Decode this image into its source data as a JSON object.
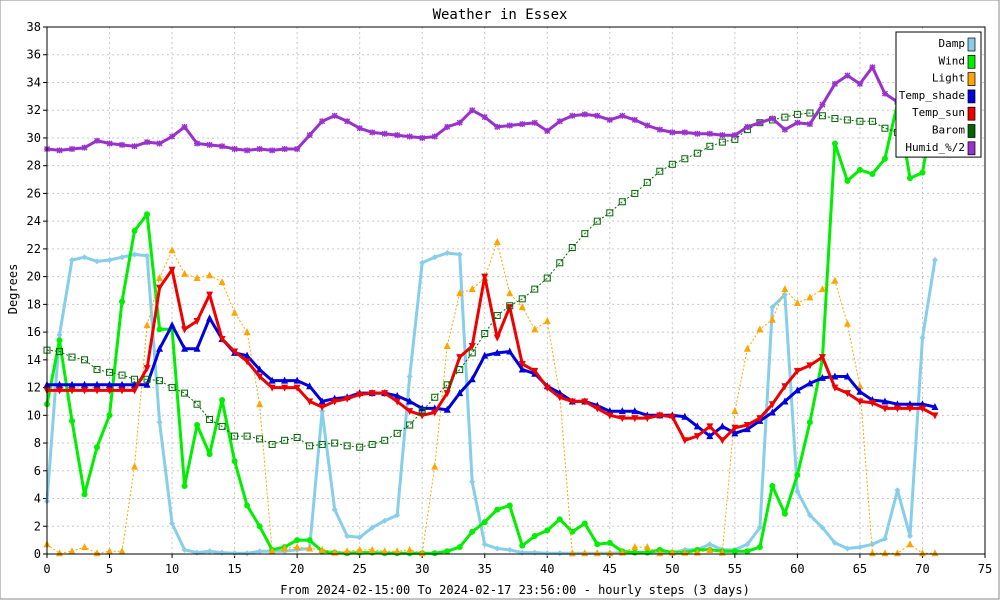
{
  "chart_data": {
    "type": "line",
    "title": "Weather in Essex",
    "xlabel": "From 2024-02-15:00 To 2024-02-17 23:56:00 - hourly steps (3 days)",
    "ylabel": "Degrees",
    "xlim": [
      0,
      75
    ],
    "ylim": [
      0,
      38
    ],
    "xticks": [
      0,
      5,
      10,
      15,
      20,
      25,
      30,
      35,
      40,
      45,
      50,
      55,
      60,
      65,
      70,
      75
    ],
    "yticks": [
      0,
      2,
      4,
      6,
      8,
      10,
      12,
      14,
      16,
      18,
      20,
      22,
      24,
      26,
      28,
      30,
      32,
      34,
      36,
      38
    ],
    "grid": true,
    "legend_position": "top-right",
    "x": [
      0,
      1,
      2,
      3,
      4,
      5,
      6,
      7,
      8,
      9,
      10,
      11,
      12,
      13,
      14,
      15,
      16,
      17,
      18,
      19,
      20,
      21,
      22,
      23,
      24,
      25,
      26,
      27,
      28,
      29,
      30,
      31,
      32,
      33,
      34,
      35,
      36,
      37,
      38,
      39,
      40,
      41,
      42,
      43,
      44,
      45,
      46,
      47,
      48,
      49,
      50,
      51,
      52,
      53,
      54,
      55,
      56,
      57,
      58,
      59,
      60,
      61,
      62,
      63,
      64,
      65,
      66,
      67,
      68,
      69,
      70,
      71
    ],
    "series": [
      {
        "name": "Damp",
        "color": "#87ceeb",
        "marker": "diamond",
        "style": "solid",
        "width": 3,
        "values": [
          3.8,
          15.8,
          21.2,
          21.4,
          21.1,
          21.2,
          21.4,
          21.6,
          21.5,
          9.5,
          2.2,
          0.3,
          0.1,
          0.2,
          0.1,
          0.05,
          0.05,
          0.2,
          0.2,
          0.2,
          0.3,
          0.4,
          10.3,
          3.2,
          1.3,
          1.2,
          1.9,
          2.4,
          2.8,
          12.8,
          21.0,
          21.4,
          21.7,
          21.6,
          5.2,
          0.7,
          0.4,
          0.3,
          0.1,
          0.1,
          0.05,
          0.05,
          0.05,
          0.05,
          0.05,
          0.05,
          0.1,
          0.1,
          0.1,
          0.1,
          0.1,
          0.3,
          0.3,
          0.7,
          0.3,
          0.3,
          0.7,
          1.9,
          17.8,
          18.7,
          4.5,
          2.8,
          1.9,
          0.8,
          0.4,
          0.5,
          0.7,
          1.1,
          4.6,
          1.3,
          15.6,
          21.2
        ]
      },
      {
        "name": "Wind",
        "color": "#00ee00",
        "marker": "circle",
        "style": "solid",
        "width": 3,
        "values": [
          10.8,
          15.4,
          9.6,
          4.3,
          7.7,
          10.0,
          18.2,
          23.3,
          24.5,
          16.2,
          16.2,
          4.9,
          9.3,
          7.2,
          11.1,
          6.7,
          3.5,
          2.0,
          0.3,
          0.5,
          1.0,
          1.0,
          0.2,
          0.1,
          0.05,
          0.1,
          0.1,
          0.05,
          0.05,
          0.05,
          0.05,
          0.05,
          0.2,
          0.5,
          1.6,
          2.3,
          3.2,
          3.5,
          0.6,
          1.3,
          1.7,
          2.5,
          1.6,
          2.2,
          0.7,
          0.8,
          0.2,
          0.1,
          0.1,
          0.3,
          0.1,
          0.1,
          0.3,
          0.3,
          0.2,
          0.2,
          0.2,
          0.5,
          4.9,
          2.9,
          5.7,
          9.5,
          14.0,
          29.6,
          26.9,
          27.7,
          27.4,
          28.5,
          32.5,
          27.1,
          27.5,
          32.7
        ]
      },
      {
        "name": "Light",
        "color": "#ffa500",
        "marker": "triangle-up",
        "style": "dotted",
        "width": 1,
        "values": [
          0.7,
          0.05,
          0.2,
          0.5,
          0.05,
          0.2,
          0.2,
          6.3,
          16.5,
          19.9,
          21.9,
          20.2,
          19.9,
          20.1,
          19.6,
          17.4,
          16.0,
          10.8,
          0.2,
          0.4,
          0.5,
          0.4,
          0.3,
          0.1,
          0.2,
          0.3,
          0.3,
          0.2,
          0.2,
          0.3,
          0.05,
          6.3,
          15.0,
          18.8,
          19.1,
          19.9,
          22.5,
          18.8,
          17.8,
          16.2,
          16.8,
          11.5,
          0.05,
          0.05,
          0.05,
          0.05,
          0.1,
          0.5,
          0.5,
          0.05,
          0.1,
          0.1,
          0.1,
          0.3,
          0.1,
          10.3,
          14.8,
          16.2,
          16.9,
          19.1,
          18.1,
          18.5,
          19.1,
          19.7,
          16.6,
          12.1,
          0.05,
          0.05,
          0.05,
          0.7,
          0.05,
          0.05
        ]
      },
      {
        "name": "Temp_shade",
        "color": "#0000dd",
        "marker": "triangle-up",
        "style": "solid",
        "width": 3,
        "values": [
          12.2,
          12.2,
          12.2,
          12.2,
          12.2,
          12.2,
          12.2,
          12.2,
          12.2,
          14.8,
          16.5,
          14.8,
          14.8,
          17.0,
          15.5,
          14.5,
          14.3,
          13.3,
          12.5,
          12.5,
          12.5,
          12.1,
          11.0,
          11.2,
          11.3,
          11.6,
          11.6,
          11.6,
          11.4,
          11.0,
          10.5,
          10.5,
          10.4,
          11.6,
          12.6,
          14.3,
          14.5,
          14.6,
          13.3,
          13.0,
          12.1,
          11.6,
          11.0,
          11.0,
          10.7,
          10.3,
          10.3,
          10.3,
          10.0,
          10.0,
          10.0,
          9.9,
          9.2,
          8.5,
          9.2,
          8.7,
          9.0,
          9.6,
          10.2,
          11.0,
          11.8,
          12.3,
          12.7,
          12.8,
          12.8,
          11.7,
          11.1,
          11.0,
          10.8,
          10.8,
          10.8,
          10.6
        ]
      },
      {
        "name": "Temp_sun",
        "color": "#ee0000",
        "marker": "triangle-down",
        "style": "solid",
        "width": 3,
        "values": [
          11.8,
          11.8,
          11.8,
          11.8,
          11.8,
          11.8,
          11.8,
          11.8,
          13.4,
          19.2,
          20.5,
          16.2,
          16.8,
          18.7,
          15.5,
          14.6,
          13.9,
          12.8,
          12.0,
          12.0,
          12.0,
          11.0,
          10.6,
          11.0,
          11.2,
          11.5,
          11.6,
          11.6,
          11.0,
          10.3,
          10.0,
          10.2,
          11.6,
          14.2,
          15.0,
          20.0,
          15.6,
          17.8,
          13.7,
          13.2,
          12.0,
          11.3,
          11.0,
          11.0,
          10.5,
          10.0,
          9.8,
          9.8,
          9.8,
          10.0,
          9.9,
          8.2,
          8.5,
          9.2,
          8.2,
          9.1,
          9.3,
          9.8,
          10.8,
          12.1,
          13.2,
          13.6,
          14.2,
          12.0,
          11.6,
          11.0,
          10.9,
          10.5,
          10.5,
          10.5,
          10.5,
          10.0
        ]
      },
      {
        "name": "Barom",
        "color": "#006600",
        "marker": "square",
        "style": "dotted",
        "width": 1,
        "values": [
          14.7,
          14.6,
          14.2,
          14.0,
          13.3,
          13.1,
          12.9,
          12.6,
          12.6,
          12.5,
          12.0,
          11.6,
          10.8,
          9.7,
          9.2,
          8.5,
          8.5,
          8.3,
          7.9,
          8.2,
          8.4,
          7.8,
          7.9,
          8.0,
          7.8,
          7.7,
          7.9,
          8.2,
          8.7,
          9.3,
          10.3,
          11.3,
          12.2,
          13.3,
          14.5,
          15.9,
          17.2,
          17.9,
          18.4,
          19.1,
          19.9,
          21.0,
          22.1,
          23.1,
          24.0,
          24.6,
          25.4,
          26.0,
          26.8,
          27.6,
          28.1,
          28.5,
          28.9,
          29.4,
          29.7,
          29.9,
          30.6,
          31.1,
          31.3,
          31.5,
          31.7,
          31.8,
          31.6,
          31.4,
          31.3,
          31.2,
          31.2,
          30.7,
          30.4,
          30.2,
          30.2,
          30.4
        ]
      },
      {
        "name": "Humid_%/2",
        "color": "#9932cc",
        "marker": "star",
        "style": "solid",
        "width": 3,
        "values": [
          29.2,
          29.1,
          29.2,
          29.3,
          29.8,
          29.6,
          29.5,
          29.4,
          29.7,
          29.6,
          30.1,
          30.8,
          29.6,
          29.5,
          29.4,
          29.2,
          29.1,
          29.2,
          29.1,
          29.2,
          29.2,
          30.2,
          31.2,
          31.6,
          31.2,
          30.7,
          30.4,
          30.3,
          30.2,
          30.1,
          30.0,
          30.1,
          30.8,
          31.1,
          32.0,
          31.5,
          30.8,
          30.9,
          31.0,
          31.1,
          30.5,
          31.2,
          31.6,
          31.7,
          31.6,
          31.3,
          31.6,
          31.3,
          30.9,
          30.6,
          30.4,
          30.4,
          30.3,
          30.3,
          30.2,
          30.2,
          30.8,
          31.1,
          31.4,
          30.6,
          31.1,
          31.0,
          32.4,
          33.9,
          34.5,
          33.9,
          35.1,
          33.2,
          32.6,
          31.4,
          31.4,
          31.8
        ]
      }
    ]
  }
}
